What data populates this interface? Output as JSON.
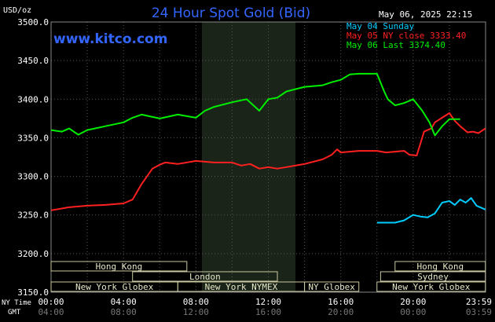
{
  "chart_data": {
    "type": "line",
    "title": "24 Hour Spot Gold (Bid)",
    "source": "www.kitco.com",
    "timestamp": "May 06, 2025 22:15",
    "ylabel": "USD/oz",
    "ylim": [
      3150,
      3500
    ],
    "yticks": [
      "3500.0",
      "3450.0",
      "3400.0",
      "3350.0",
      "3300.0",
      "3250.0",
      "3200.0",
      "3150.0"
    ],
    "xlim": [
      0,
      24
    ],
    "ny_time_label": "NY Time",
    "gmt_label": "GMT",
    "xticks_ny": [
      "00:00",
      "04:00",
      "08:00",
      "12:00",
      "16:00",
      "20:00",
      "23:59"
    ],
    "xticks_gmt": [
      "04:00",
      "08:00",
      "12:00",
      "16:00",
      "20:00",
      "00:00",
      "03:59"
    ],
    "grid": true,
    "legend_position": "top-right",
    "nymex_shading": [
      8.33,
      13.5
    ],
    "series": [
      {
        "name": "May 04 Sunday",
        "color": "#00ccff",
        "x": [
          18.0,
          19.0,
          19.5,
          20.0,
          20.4,
          20.8,
          21.2,
          21.6,
          22.0,
          22.3,
          22.6,
          22.9,
          23.2,
          23.5,
          23.99
        ],
        "y": [
          3240,
          3240,
          3243,
          3250,
          3248,
          3247,
          3252,
          3266,
          3268,
          3263,
          3270,
          3266,
          3272,
          3262,
          3257
        ]
      },
      {
        "name": "May 05 NY close 3333.40",
        "color": "#ff2020",
        "x": [
          0,
          1.0,
          2.0,
          3.0,
          4.0,
          4.5,
          5.0,
          5.6,
          6.0,
          6.3,
          7.0,
          8.0,
          9.0,
          10.0,
          10.5,
          11.0,
          11.5,
          12.0,
          12.5,
          13.0,
          14.0,
          15.0,
          15.5,
          15.8,
          16.0,
          17.0,
          18.0,
          18.5,
          19.0,
          19.5,
          19.8,
          20.2,
          20.6,
          21.0,
          21.2,
          21.6,
          22.0,
          22.3,
          22.6,
          23.0,
          23.3,
          23.6,
          23.99
        ],
        "y": [
          3256,
          3260,
          3262,
          3263,
          3265,
          3270,
          3290,
          3310,
          3315,
          3318,
          3316,
          3320,
          3318,
          3318,
          3314,
          3316,
          3310,
          3312,
          3310,
          3312,
          3316,
          3322,
          3328,
          3335,
          3331,
          3333,
          3333,
          3331,
          3332,
          3333,
          3328,
          3327,
          3358,
          3362,
          3370,
          3376,
          3382,
          3372,
          3365,
          3357,
          3358,
          3356,
          3362
        ]
      },
      {
        "name": "May 06 Last 3374.40",
        "color": "#00ee00",
        "x": [
          0,
          0.6,
          1.0,
          1.5,
          2.0,
          3.0,
          4.0,
          4.5,
          5.0,
          6.0,
          7.0,
          8.0,
          8.5,
          9.0,
          10.0,
          10.8,
          11.5,
          12.0,
          12.5,
          13.0,
          14.0,
          15.0,
          15.5,
          16.0,
          16.5,
          17.0,
          17.5,
          18.0,
          18.4,
          18.6,
          19.0,
          19.5,
          20.0,
          20.5,
          20.9,
          21.2,
          21.6,
          22.0,
          22.3,
          22.6
        ],
        "y": [
          3360,
          3358,
          3362,
          3354,
          3360,
          3365,
          3370,
          3376,
          3380,
          3375,
          3380,
          3376,
          3385,
          3390,
          3396,
          3400,
          3385,
          3400,
          3402,
          3410,
          3416,
          3418,
          3422,
          3425,
          3432,
          3433,
          3433,
          3433,
          3410,
          3400,
          3392,
          3395,
          3400,
          3385,
          3370,
          3353,
          3365,
          3374,
          3374,
          3374
        ]
      }
    ],
    "sessions": [
      {
        "label": "Hong Kong",
        "start": 0,
        "end": 7.5,
        "row": 0
      },
      {
        "label": "London",
        "start": 4.5,
        "end": 12.5,
        "row": 1
      },
      {
        "label": "New York Globex",
        "start": 0,
        "end": 7.0,
        "row": 2
      },
      {
        "label": "New York NYMEX",
        "start": 7.0,
        "end": 14.0,
        "row": 2
      },
      {
        "label": "NY Globex",
        "start": 14.0,
        "end": 17.0,
        "row": 2
      },
      {
        "label": "Hong Kong",
        "start": 19.0,
        "end": 23.99,
        "row": 0
      },
      {
        "label": "Sydney",
        "start": 18.2,
        "end": 23.99,
        "row": 1
      },
      {
        "label": "New York Globex",
        "start": 18.0,
        "end": 23.99,
        "row": 2
      }
    ]
  }
}
